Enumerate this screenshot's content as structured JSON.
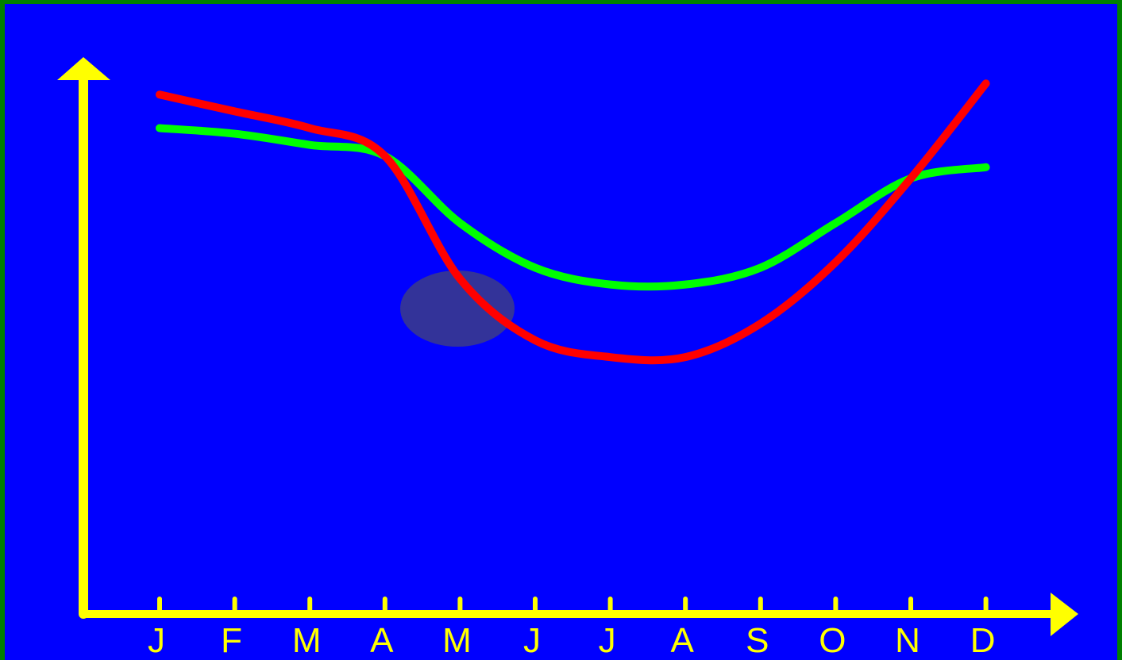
{
  "chart_data": {
    "type": "line",
    "title": "",
    "xlabel": "",
    "ylabel": "",
    "categories": [
      "J",
      "F",
      "M",
      "A",
      "M",
      "J",
      "J",
      "A",
      "S",
      "O",
      "N",
      "D"
    ],
    "ylim": [
      0,
      100
    ],
    "grid": false,
    "legend": "none",
    "series": [
      {
        "color": "#00FF00",
        "values": [
          87,
          86,
          84,
          82,
          70,
          62,
          59,
          59,
          62,
          70,
          78,
          80
        ]
      },
      {
        "color": "#FF0000",
        "values": [
          93,
          90,
          87,
          82,
          60,
          49,
          46,
          46,
          52,
          63,
          78,
          95
        ]
      }
    ]
  },
  "colors": {
    "background": "#0000FF",
    "border": "#008000",
    "axis": "#FFFF00",
    "ellipse": "#333399"
  }
}
